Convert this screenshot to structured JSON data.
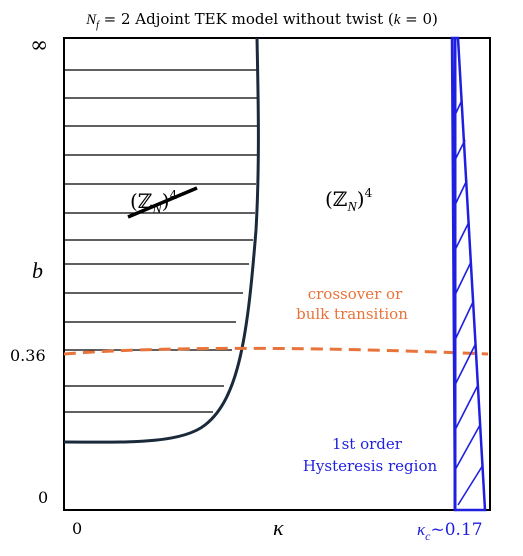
{
  "title": {
    "prefix_var": "N",
    "prefix_sub": "f",
    "text": " = 2 Adjoint TEK model without twist (",
    "k_var": "k",
    "k_rest": " = 0)"
  },
  "axes": {
    "y_label": "b",
    "x_label": "κ",
    "y_tick_top": "∞",
    "y_tick_mid": "0.36",
    "y_tick_bottom": "0",
    "x_tick_left": "0",
    "x_tick_right_var": "κ",
    "x_tick_right_sub": "c",
    "x_tick_right_rest": "~0.17"
  },
  "phases": {
    "broken_label_base": "(ℤ",
    "broken_label_sub": "N",
    "broken_label_close": ")",
    "broken_label_exp": "4",
    "unbroken_label_base": "(ℤ",
    "unbroken_label_sub": "N",
    "unbroken_label_close": ")",
    "unbroken_label_exp": "4"
  },
  "annotations": {
    "crossover_line1": "crossover or",
    "crossover_line2": "bulk transition",
    "hysteresis_line1": "1st order",
    "hysteresis_line2": "Hysteresis region"
  },
  "colors": {
    "frame": "#000000",
    "boundary": "#1a2a3a",
    "crossover": "#e8743b",
    "hysteresis": "#1f1fe0"
  }
}
